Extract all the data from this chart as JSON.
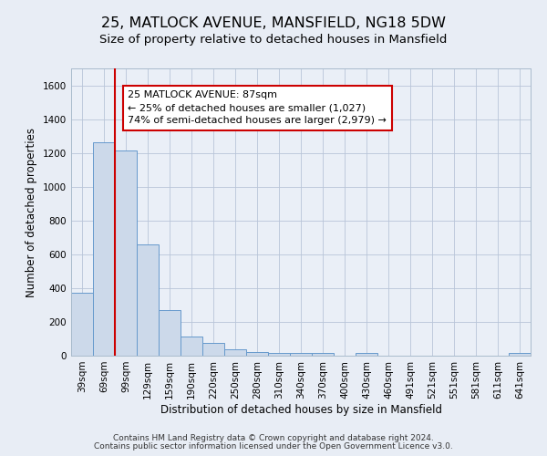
{
  "title": "25, MATLOCK AVENUE, MANSFIELD, NG18 5DW",
  "subtitle": "Size of property relative to detached houses in Mansfield",
  "xlabel": "Distribution of detached houses by size in Mansfield",
  "ylabel": "Number of detached properties",
  "bar_labels": [
    "39sqm",
    "69sqm",
    "99sqm",
    "129sqm",
    "159sqm",
    "190sqm",
    "220sqm",
    "250sqm",
    "280sqm",
    "310sqm",
    "340sqm",
    "370sqm",
    "400sqm",
    "430sqm",
    "460sqm",
    "491sqm",
    "521sqm",
    "551sqm",
    "581sqm",
    "611sqm",
    "641sqm"
  ],
  "bar_values": [
    370,
    1265,
    1215,
    660,
    270,
    115,
    75,
    40,
    20,
    15,
    15,
    15,
    0,
    15,
    0,
    0,
    0,
    0,
    0,
    0,
    15
  ],
  "bar_color": "#ccd9ea",
  "bar_edgecolor": "#6699cc",
  "vline_color": "#cc0000",
  "annotation_box_facecolor": "#ffffff",
  "annotation_box_edgecolor": "#cc0000",
  "annotation_line1": "25 MATLOCK AVENUE: 87sqm",
  "annotation_line2": "← 25% of detached houses are smaller (1,027)",
  "annotation_line3": "74% of semi-detached houses are larger (2,979) →",
  "ylim": [
    0,
    1700
  ],
  "yticks": [
    0,
    200,
    400,
    600,
    800,
    1000,
    1200,
    1400,
    1600
  ],
  "background_color": "#e8edf5",
  "plot_background_color": "#eaeff7",
  "footer_line1": "Contains HM Land Registry data © Crown copyright and database right 2024.",
  "footer_line2": "Contains public sector information licensed under the Open Government Licence v3.0.",
  "title_fontsize": 11.5,
  "subtitle_fontsize": 9.5,
  "ylabel_fontsize": 8.5,
  "xlabel_fontsize": 8.5,
  "tick_fontsize": 7.5,
  "annotation_fontsize": 8,
  "footer_fontsize": 6.5
}
